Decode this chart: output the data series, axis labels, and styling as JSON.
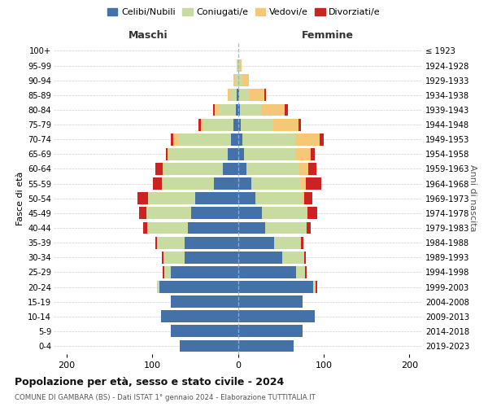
{
  "age_groups": [
    "0-4",
    "5-9",
    "10-14",
    "15-19",
    "20-24",
    "25-29",
    "30-34",
    "35-39",
    "40-44",
    "45-49",
    "50-54",
    "55-59",
    "60-64",
    "65-69",
    "70-74",
    "75-79",
    "80-84",
    "85-89",
    "90-94",
    "95-99",
    "100+"
  ],
  "birth_years": [
    "2019-2023",
    "2014-2018",
    "2009-2013",
    "2004-2008",
    "1999-2003",
    "1994-1998",
    "1989-1993",
    "1984-1988",
    "1979-1983",
    "1974-1978",
    "1969-1973",
    "1964-1968",
    "1959-1963",
    "1954-1958",
    "1949-1953",
    "1944-1948",
    "1939-1943",
    "1934-1938",
    "1929-1933",
    "1924-1928",
    "≤ 1923"
  ],
  "males": {
    "celibi": [
      68,
      78,
      90,
      78,
      92,
      78,
      62,
      62,
      58,
      55,
      50,
      28,
      18,
      12,
      8,
      5,
      2,
      1,
      0,
      0,
      0
    ],
    "coniugati": [
      0,
      0,
      0,
      0,
      2,
      8,
      25,
      32,
      48,
      52,
      55,
      60,
      68,
      68,
      62,
      35,
      20,
      8,
      3,
      1,
      0
    ],
    "vedovi": [
      0,
      0,
      0,
      0,
      0,
      0,
      0,
      0,
      0,
      0,
      0,
      1,
      2,
      2,
      5,
      3,
      5,
      3,
      2,
      0,
      0
    ],
    "divorziati": [
      0,
      0,
      0,
      0,
      0,
      2,
      2,
      2,
      5,
      8,
      12,
      10,
      8,
      2,
      3,
      3,
      2,
      0,
      0,
      0,
      0
    ]
  },
  "females": {
    "nubili": [
      65,
      75,
      90,
      75,
      88,
      68,
      52,
      42,
      32,
      28,
      20,
      16,
      10,
      7,
      5,
      3,
      2,
      1,
      0,
      0,
      0
    ],
    "coniugate": [
      0,
      0,
      0,
      0,
      3,
      10,
      25,
      32,
      48,
      52,
      55,
      58,
      62,
      60,
      62,
      38,
      25,
      12,
      5,
      2,
      0
    ],
    "vedove": [
      0,
      0,
      0,
      0,
      0,
      0,
      0,
      0,
      0,
      1,
      2,
      5,
      10,
      18,
      28,
      30,
      28,
      18,
      8,
      2,
      0
    ],
    "divorziate": [
      0,
      0,
      0,
      0,
      2,
      2,
      2,
      2,
      5,
      12,
      10,
      18,
      10,
      5,
      5,
      3,
      3,
      2,
      0,
      0,
      0
    ]
  },
  "colors": {
    "celibi": "#4472a8",
    "coniugati": "#c8dba0",
    "vedovi": "#f5c878",
    "divorziati": "#cc2222"
  },
  "xlim": [
    -215,
    215
  ],
  "xticks": [
    -200,
    -100,
    0,
    100,
    200
  ],
  "xtick_labels": [
    "200",
    "100",
    "0",
    "100",
    "200"
  ],
  "title": "Popolazione per età, sesso e stato civile - 2024",
  "subtitle": "COMUNE DI GAMBARA (BS) - Dati ISTAT 1° gennaio 2024 - Elaborazione TUTTITALIA.IT",
  "ylabel_left": "Fasce di età",
  "ylabel_right": "Anni di nascita",
  "label_maschi": "Maschi",
  "label_femmine": "Femmine",
  "legend_labels": [
    "Celibi/Nubili",
    "Coniugati/e",
    "Vedovi/e",
    "Divorziati/e"
  ],
  "background_color": "#ffffff",
  "grid_color": "#cccccc"
}
